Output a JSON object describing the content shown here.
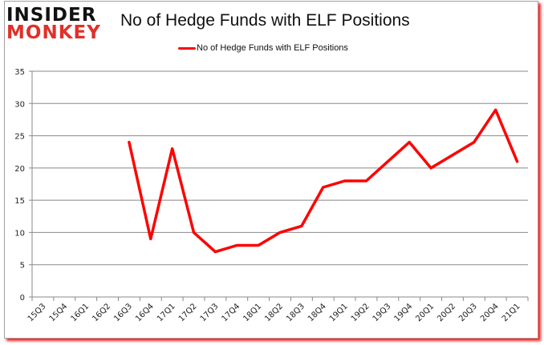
{
  "logo": {
    "line1": "INSIDER",
    "line2": "MONKEY"
  },
  "colors": {
    "series": "#ff0000",
    "grid": "#888888",
    "logo_accent": "#e0302a",
    "frame_shadow": "#ff2020"
  },
  "chart_data": {
    "type": "line",
    "title": "No of Hedge Funds with ELF Positions",
    "xlabel": "",
    "ylabel": "",
    "ylim": [
      0,
      35
    ],
    "yticks": [
      0,
      5,
      10,
      15,
      20,
      25,
      30,
      35
    ],
    "grid": true,
    "legend_position": "top",
    "categories": [
      "15Q3",
      "15Q4",
      "16Q1",
      "16Q2",
      "16Q3",
      "16Q4",
      "17Q1",
      "17Q2",
      "17Q3",
      "17Q4",
      "18Q1",
      "18Q2",
      "18Q3",
      "18Q4",
      "19Q1",
      "19Q2",
      "19Q3",
      "19Q4",
      "20Q1",
      "20Q2",
      "20Q3",
      "20Q4",
      "21Q1"
    ],
    "series": [
      {
        "name": "No of Hedge Funds with ELF Positions",
        "values": [
          null,
          null,
          null,
          null,
          24,
          9,
          23,
          10,
          7,
          8,
          8,
          10,
          11,
          17,
          18,
          18,
          21,
          24,
          20,
          22,
          24,
          29,
          21
        ]
      }
    ]
  }
}
